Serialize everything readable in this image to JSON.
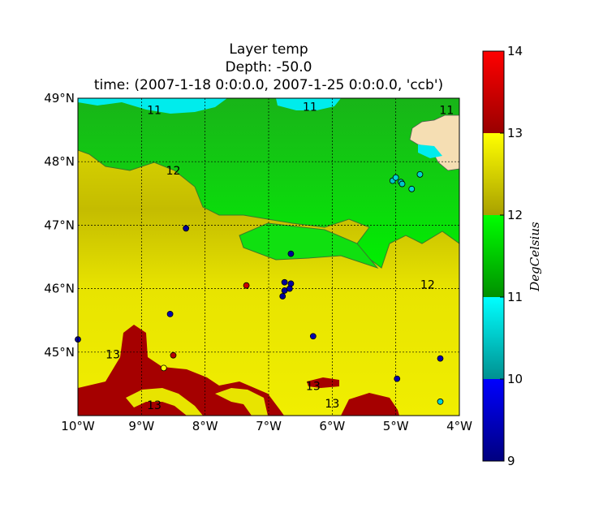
{
  "title": {
    "line1": "Layer temp",
    "line2": "Depth: -50.0",
    "line3": "time: (2007-1-18 0:0:0.0, 2007-1-25 0:0:0.0, 'ccb')"
  },
  "chart_data": {
    "type": "heatmap",
    "description_of_grid": "filled contour map of ocean layer temperature at -50 m depth, Bay of Biscay",
    "x_ticks": [
      "10°W",
      "9°W",
      "8°W",
      "7°W",
      "6°W",
      "5°W",
      "4°W"
    ],
    "x_tick_values": [
      -10,
      -9,
      -8,
      -7,
      -6,
      -5,
      -4
    ],
    "y_ticks": [
      "45°N",
      "46°N",
      "47°N",
      "48°N",
      "49°N"
    ],
    "y_tick_values": [
      45,
      46,
      47,
      48,
      49
    ],
    "xlim": [
      -10,
      -4
    ],
    "ylim": [
      44,
      49
    ],
    "grid": true,
    "colorbar": {
      "label": "DegCelsius",
      "ticks": [
        "9",
        "10",
        "11",
        "12",
        "13",
        "14"
      ],
      "tick_values": [
        9,
        10,
        11,
        12,
        13,
        14
      ],
      "bands": [
        {
          "from": 9,
          "to": 10,
          "color_low": "#00007f",
          "color_high": "#0000ff"
        },
        {
          "from": 10,
          "to": 11,
          "color_low": "#009090",
          "color_high": "#00ffff"
        },
        {
          "from": 11,
          "to": 12,
          "color_low": "#009000",
          "color_high": "#00ff00"
        },
        {
          "from": 12,
          "to": 13,
          "color_low": "#a8a000",
          "color_high": "#ffff00"
        },
        {
          "from": 13,
          "to": 14,
          "color_low": "#990000",
          "color_high": "#ff0000"
        }
      ]
    },
    "contour_labels": [
      {
        "text": "11",
        "lon": -8.8,
        "lat": 48.75
      },
      {
        "text": "11",
        "lon": -6.35,
        "lat": 48.8
      },
      {
        "text": "11",
        "lon": -4.2,
        "lat": 48.75
      },
      {
        "text": "12",
        "lon": -8.5,
        "lat": 47.8
      },
      {
        "text": "12",
        "lon": -4.5,
        "lat": 46.0
      },
      {
        "text": "13",
        "lon": -9.45,
        "lat": 44.9
      },
      {
        "text": "13",
        "lon": -8.8,
        "lat": 44.1
      },
      {
        "text": "13",
        "lon": -6.3,
        "lat": 44.4
      },
      {
        "text": "13",
        "lon": -6.0,
        "lat": 44.13
      }
    ],
    "observations": [
      {
        "lon": -10.0,
        "lat": 45.2,
        "value": 9.3
      },
      {
        "lon": -8.3,
        "lat": 46.95,
        "value": 9.2
      },
      {
        "lon": -8.55,
        "lat": 45.6,
        "value": 9.4
      },
      {
        "lon": -8.5,
        "lat": 44.95,
        "value": 13.3
      },
      {
        "lon": -8.65,
        "lat": 44.75,
        "value": 13.0
      },
      {
        "lon": -7.35,
        "lat": 46.05,
        "value": 13.5
      },
      {
        "lon": -6.65,
        "lat": 46.55,
        "value": 9.2
      },
      {
        "lon": -6.75,
        "lat": 46.1,
        "value": 9.2
      },
      {
        "lon": -6.65,
        "lat": 46.08,
        "value": 9.3
      },
      {
        "lon": -6.75,
        "lat": 45.97,
        "value": 9.2
      },
      {
        "lon": -6.67,
        "lat": 46.0,
        "value": 9.3
      },
      {
        "lon": -6.78,
        "lat": 45.88,
        "value": 9.2
      },
      {
        "lon": -6.3,
        "lat": 45.25,
        "value": 9.4
      },
      {
        "lon": -4.98,
        "lat": 44.58,
        "value": 9.4
      },
      {
        "lon": -4.3,
        "lat": 44.9,
        "value": 9.4
      },
      {
        "lon": -4.3,
        "lat": 44.22,
        "value": 10.6
      },
      {
        "lon": -5.05,
        "lat": 47.7,
        "value": 10.5
      },
      {
        "lon": -5.0,
        "lat": 47.75,
        "value": 10.6
      },
      {
        "lon": -4.92,
        "lat": 47.68,
        "value": 10.4
      },
      {
        "lon": -4.9,
        "lat": 47.65,
        "value": 10.5
      },
      {
        "lon": -4.75,
        "lat": 47.57,
        "value": 10.6
      },
      {
        "lon": -4.62,
        "lat": 47.8,
        "value": 10.6
      }
    ]
  }
}
